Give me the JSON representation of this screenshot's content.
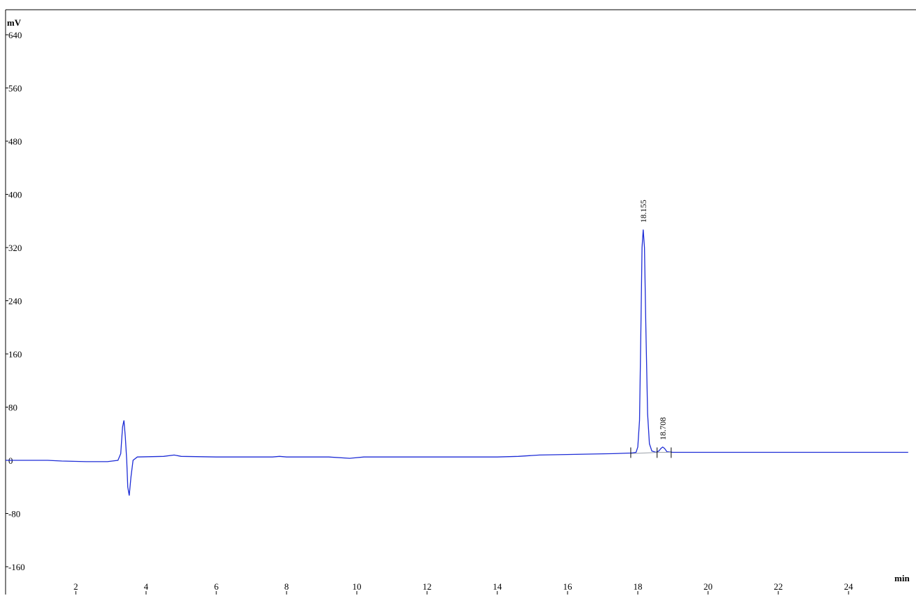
{
  "chart_data": {
    "type": "line",
    "title": "",
    "xlabel": "min",
    "ylabel": "mV",
    "xlim": [
      0,
      25.7
    ],
    "ylim": [
      -180,
      660
    ],
    "grid": false,
    "x_ticks": [
      2,
      4,
      6,
      8,
      10,
      12,
      14,
      16,
      18,
      20,
      22,
      24
    ],
    "x_tick_labels": [
      "2",
      "4",
      "6",
      "8",
      "10",
      "12",
      "14",
      "16",
      "18",
      "20",
      "22",
      "24"
    ],
    "y_ticks": [
      640,
      560,
      480,
      400,
      320,
      240,
      160,
      80,
      0,
      -80,
      -160
    ],
    "y_tick_labels": [
      "640",
      "560",
      "480",
      "400",
      "320",
      "240",
      "160",
      "80",
      "0",
      "-80",
      "-160"
    ],
    "series": [
      {
        "color": "#1c2bd6",
        "points": [
          [
            0,
            0
          ],
          [
            1.2,
            0
          ],
          [
            1.6,
            -1
          ],
          [
            2.3,
            -2
          ],
          [
            2.9,
            -2
          ],
          [
            3.2,
            0
          ],
          [
            3.28,
            10
          ],
          [
            3.33,
            50
          ],
          [
            3.37,
            60
          ],
          [
            3.41,
            35
          ],
          [
            3.45,
            0
          ],
          [
            3.48,
            -40
          ],
          [
            3.52,
            -53
          ],
          [
            3.57,
            -25
          ],
          [
            3.63,
            0
          ],
          [
            3.75,
            5
          ],
          [
            4.5,
            6
          ],
          [
            4.8,
            8
          ],
          [
            5.0,
            6
          ],
          [
            6.0,
            5
          ],
          [
            7.6,
            5
          ],
          [
            7.8,
            6
          ],
          [
            8.0,
            5
          ],
          [
            9.2,
            5
          ],
          [
            9.8,
            3
          ],
          [
            10.2,
            5
          ],
          [
            12,
            5
          ],
          [
            14.0,
            5
          ],
          [
            14.6,
            6
          ],
          [
            15.2,
            8
          ],
          [
            17.3,
            10
          ],
          [
            17.8,
            11
          ],
          [
            17.95,
            12
          ],
          [
            18.0,
            20
          ],
          [
            18.05,
            60
          ],
          [
            18.09,
            200
          ],
          [
            18.12,
            320
          ],
          [
            18.155,
            347
          ],
          [
            18.19,
            320
          ],
          [
            18.23,
            200
          ],
          [
            18.28,
            70
          ],
          [
            18.33,
            25
          ],
          [
            18.4,
            14
          ],
          [
            18.52,
            12
          ],
          [
            18.6,
            14
          ],
          [
            18.66,
            18
          ],
          [
            18.708,
            20
          ],
          [
            18.76,
            18
          ],
          [
            18.83,
            13
          ],
          [
            19.0,
            12
          ],
          [
            21.0,
            12
          ],
          [
            23.0,
            12
          ],
          [
            25.7,
            12
          ]
        ]
      }
    ],
    "baseline": {
      "color": "#9aa0a8",
      "points": [
        [
          17.8,
          10
        ],
        [
          18.6,
          12
        ],
        [
          18.95,
          12
        ]
      ]
    },
    "peak_markers": [
      17.8,
      18.55,
      18.95
    ],
    "peaks": [
      {
        "label": "18.155",
        "x": 18.155,
        "y": 347
      },
      {
        "label": "18.708",
        "x": 18.708,
        "y": 20
      }
    ]
  }
}
